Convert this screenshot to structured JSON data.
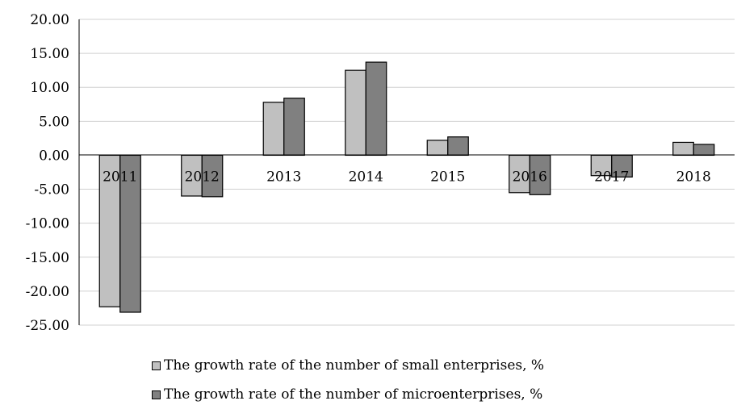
{
  "chart_data": {
    "type": "bar",
    "title": "",
    "xlabel": "",
    "ylabel": "",
    "categories": [
      "2011",
      "2012",
      "2013",
      "2014",
      "2015",
      "2016",
      "2017",
      "2018"
    ],
    "series": [
      {
        "name": "The growth rate of the number of small enterprises, %",
        "values": [
          -22.3,
          -6.0,
          7.8,
          12.5,
          2.2,
          -5.5,
          -3.0,
          1.9
        ],
        "color": "#c0c0c0"
      },
      {
        "name": "The growth rate of the number of microenterprises, %",
        "values": [
          -23.1,
          -6.1,
          8.4,
          13.7,
          2.7,
          -5.8,
          -3.2,
          1.6
        ],
        "color": "#808080"
      }
    ],
    "ylim": [
      -25,
      20
    ],
    "yticks": [
      "20.00",
      "15.00",
      "10.00",
      "5.00",
      "0.00",
      "-5.00",
      "-10.00",
      "-15.00",
      "-20.00",
      "-25.00"
    ],
    "grid": true,
    "legend_position": "bottom"
  }
}
